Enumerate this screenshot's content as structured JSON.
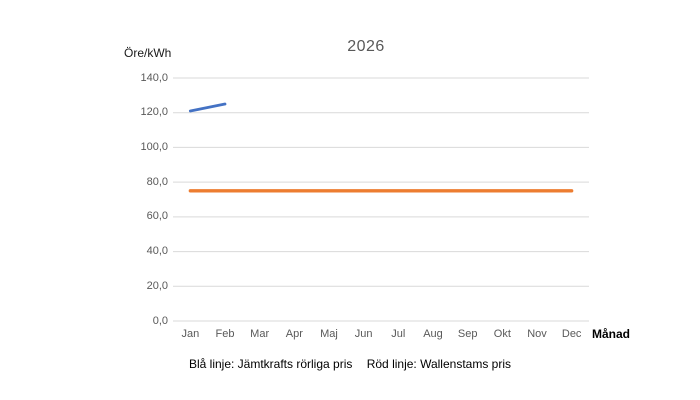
{
  "chart_data": {
    "type": "line",
    "title": "2026",
    "ylabel": "Öre/kWh",
    "xlabel": "Månad",
    "categories": [
      "Jan",
      "Feb",
      "Mar",
      "Apr",
      "Maj",
      "Jun",
      "Jul",
      "Aug",
      "Sep",
      "Okt",
      "Nov",
      "Dec"
    ],
    "series": [
      {
        "name": "Jämtkrafts rörliga pris",
        "color": "#4472C4",
        "stroke_width": 2.8,
        "values": [
          121,
          125,
          null,
          null,
          null,
          null,
          null,
          null,
          null,
          null,
          null,
          null
        ]
      },
      {
        "name": "Wallenstams pris",
        "color": "#ED7D31",
        "stroke_width": 3.3,
        "values": [
          75,
          75,
          75,
          75,
          75,
          75,
          75,
          75,
          75,
          75,
          75,
          75
        ]
      }
    ],
    "ylim": [
      0,
      140
    ],
    "ytick_step": 20,
    "ytick_labels": [
      "0,0",
      "20,0",
      "40,0",
      "60,0",
      "80,0",
      "100,0",
      "120,0",
      "140,0"
    ],
    "grid": "horizontal",
    "gridline_color": "#D9D9D9",
    "axis_text_color": "#595959",
    "legend_position": "none",
    "caption_blue": "Blå linje: Jämtkrafts rörliga pris",
    "caption_red": "Röd linje: Wallenstams pris"
  }
}
